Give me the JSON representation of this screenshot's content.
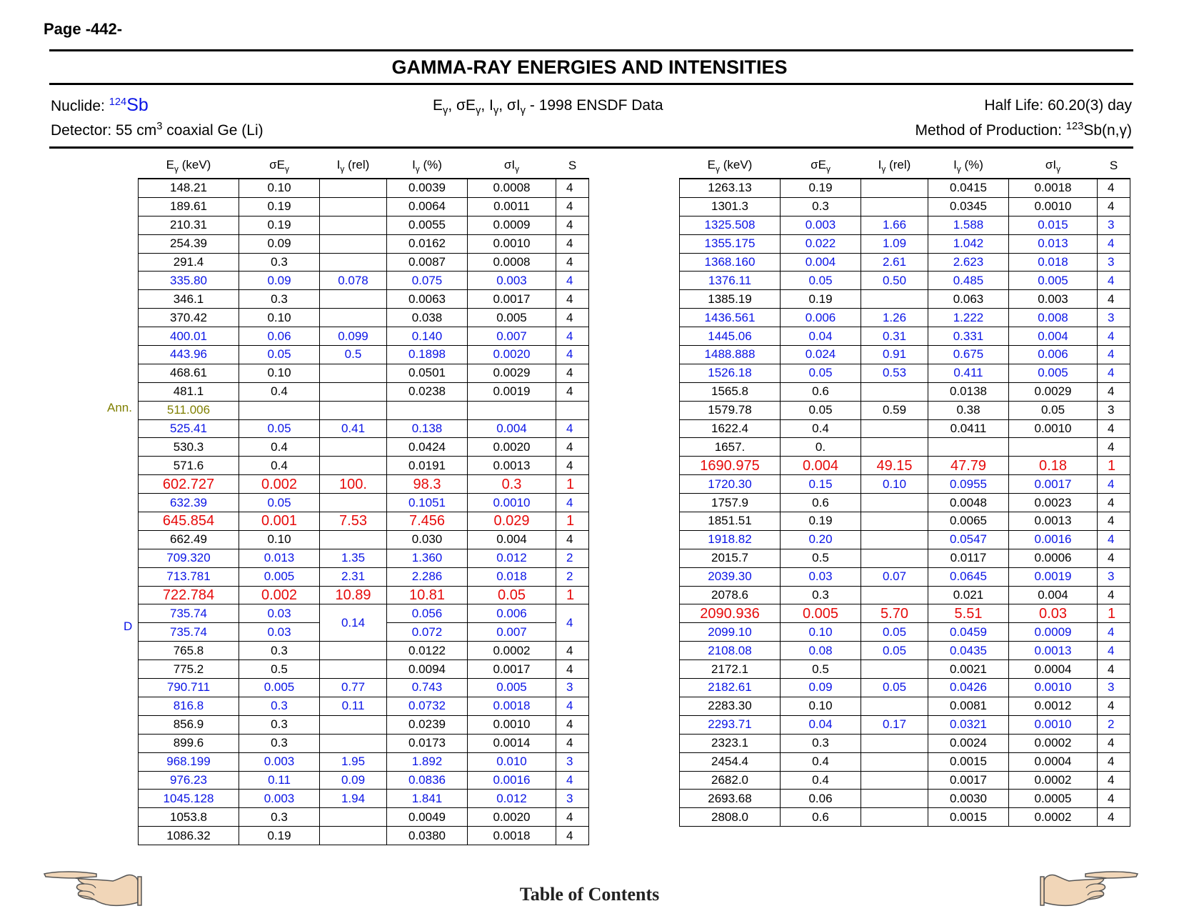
{
  "page_label": "Page -442-",
  "title": "GAMMA-RAY ENERGIES AND INTENSITIES",
  "header": {
    "nuclide_label": "Nuclide:",
    "nuclide_mass": "124",
    "nuclide_symbol": "Sb",
    "detector_label": "Detector: 55 cm",
    "detector_sup": "3",
    "detector_rest": " coaxial Ge (Li)",
    "data_source": "1998 ENSDF Data",
    "half_life": "Half Life: 60.20(3) day",
    "production_label": "Method of Production: ",
    "production_sup": "123",
    "production_rest": "Sb(n,γ)"
  },
  "columns": {
    "energy": "(keV)",
    "i_rel": "(rel)",
    "i_pct": "(%)",
    "s": "S"
  },
  "colors": {
    "blue": "#0a14e6",
    "red": "#e60a0a",
    "olive": "#7f7f00",
    "black": "#000000"
  },
  "annotations": {
    "ann": "Ann.",
    "d": "D"
  },
  "left_rows": [
    {
      "e": "148.21",
      "se": "0.10",
      "ir": "",
      "ip": "0.0039",
      "si": "0.0008",
      "s": "4",
      "c": "black"
    },
    {
      "e": "189.61",
      "se": "0.19",
      "ir": "",
      "ip": "0.0064",
      "si": "0.0011",
      "s": "4",
      "c": "black"
    },
    {
      "e": "210.31",
      "se": "0.19",
      "ir": "",
      "ip": "0.0055",
      "si": "0.0009",
      "s": "4",
      "c": "black"
    },
    {
      "e": "254.39",
      "se": "0.09",
      "ir": "",
      "ip": "0.0162",
      "si": "0.0010",
      "s": "4",
      "c": "black"
    },
    {
      "e": "291.4",
      "se": "0.3",
      "ir": "",
      "ip": "0.0087",
      "si": "0.0008",
      "s": "4",
      "c": "black"
    },
    {
      "e": "335.80",
      "se": "0.09",
      "ir": "0.078",
      "ip": "0.075",
      "si": "0.003",
      "s": "4",
      "c": "blue"
    },
    {
      "e": "346.1",
      "se": "0.3",
      "ir": "",
      "ip": "0.0063",
      "si": "0.0017",
      "s": "4",
      "c": "black"
    },
    {
      "e": "370.42",
      "se": "0.10",
      "ir": "",
      "ip": "0.038",
      "si": "0.005",
      "s": "4",
      "c": "black"
    },
    {
      "e": "400.01",
      "se": "0.06",
      "ir": "0.099",
      "ip": "0.140",
      "si": "0.007",
      "s": "4",
      "c": "blue"
    },
    {
      "e": "443.96",
      "se": "0.05",
      "ir": "0.5",
      "ip": "0.1898",
      "si": "0.0020",
      "s": "4",
      "c": "blue"
    },
    {
      "e": "468.61",
      "se": "0.10",
      "ir": "",
      "ip": "0.0501",
      "si": "0.0029",
      "s": "4",
      "c": "black"
    },
    {
      "e": "481.1",
      "se": "0.4",
      "ir": "",
      "ip": "0.0238",
      "si": "0.0019",
      "s": "4",
      "c": "black"
    },
    {
      "e": "511.006",
      "se": "",
      "ir": "",
      "ip": "",
      "si": "",
      "s": "",
      "c": "olive"
    },
    {
      "e": "525.41",
      "se": "0.05",
      "ir": "0.41",
      "ip": "0.138",
      "si": "0.004",
      "s": "4",
      "c": "blue"
    },
    {
      "e": "530.3",
      "se": "0.4",
      "ir": "",
      "ip": "0.0424",
      "si": "0.0020",
      "s": "4",
      "c": "black"
    },
    {
      "e": "571.6",
      "se": "0.4",
      "ir": "",
      "ip": "0.0191",
      "si": "0.0013",
      "s": "4",
      "c": "black"
    },
    {
      "e": "602.727",
      "se": "0.002",
      "ir": "100.",
      "ip": "98.3",
      "si": "0.3",
      "s": "1",
      "c": "red"
    },
    {
      "e": "632.39",
      "se": "0.05",
      "ir": "",
      "ip": "0.1051",
      "si": "0.0010",
      "s": "4",
      "c": "blue"
    },
    {
      "e": "645.854",
      "se": "0.001",
      "ir": "7.53",
      "ip": "7.456",
      "si": "0.029",
      "s": "1",
      "c": "red"
    },
    {
      "e": "662.49",
      "se": "0.10",
      "ir": "",
      "ip": "0.030",
      "si": "0.004",
      "s": "4",
      "c": "black"
    },
    {
      "e": "709.320",
      "se": "0.013",
      "ir": "1.35",
      "ip": "1.360",
      "si": "0.012",
      "s": "2",
      "c": "blue"
    },
    {
      "e": "713.781",
      "se": "0.005",
      "ir": "2.31",
      "ip": "2.286",
      "si": "0.018",
      "s": "2",
      "c": "blue"
    },
    {
      "e": "722.784",
      "se": "0.002",
      "ir": "10.89",
      "ip": "10.81",
      "si": "0.05",
      "s": "1",
      "c": "red"
    },
    {
      "e": "735.74",
      "se": "0.03",
      "ir": "0.14",
      "ip": "0.056",
      "si": "0.006",
      "s": "4",
      "c": "blue",
      "dbl": "top"
    },
    {
      "e": "735.74",
      "se": "0.03",
      "ir": "",
      "ip": "0.072",
      "si": "0.007",
      "s": "",
      "c": "blue",
      "dbl": "bottom"
    },
    {
      "e": "765.8",
      "se": "0.3",
      "ir": "",
      "ip": "0.0122",
      "si": "0.0002",
      "s": "4",
      "c": "black"
    },
    {
      "e": "775.2",
      "se": "0.5",
      "ir": "",
      "ip": "0.0094",
      "si": "0.0017",
      "s": "4",
      "c": "black"
    },
    {
      "e": "790.711",
      "se": "0.005",
      "ir": "0.77",
      "ip": "0.743",
      "si": "0.005",
      "s": "3",
      "c": "blue"
    },
    {
      "e": "816.8",
      "se": "0.3",
      "ir": "0.11",
      "ip": "0.0732",
      "si": "0.0018",
      "s": "4",
      "c": "blue"
    },
    {
      "e": "856.9",
      "se": "0.3",
      "ir": "",
      "ip": "0.0239",
      "si": "0.0010",
      "s": "4",
      "c": "black"
    },
    {
      "e": "899.6",
      "se": "0.3",
      "ir": "",
      "ip": "0.0173",
      "si": "0.0014",
      "s": "4",
      "c": "black"
    },
    {
      "e": "968.199",
      "se": "0.003",
      "ir": "1.95",
      "ip": "1.892",
      "si": "0.010",
      "s": "3",
      "c": "blue"
    },
    {
      "e": "976.23",
      "se": "0.11",
      "ir": "0.09",
      "ip": "0.0836",
      "si": "0.0016",
      "s": "4",
      "c": "blue"
    },
    {
      "e": "1045.128",
      "se": "0.003",
      "ir": "1.94",
      "ip": "1.841",
      "si": "0.012",
      "s": "3",
      "c": "blue"
    },
    {
      "e": "1053.8",
      "se": "0.3",
      "ir": "",
      "ip": "0.0049",
      "si": "0.0020",
      "s": "4",
      "c": "black"
    },
    {
      "e": "1086.32",
      "se": "0.19",
      "ir": "",
      "ip": "0.0380",
      "si": "0.0018",
      "s": "4",
      "c": "black"
    }
  ],
  "right_rows": [
    {
      "e": "1263.13",
      "se": "0.19",
      "ir": "",
      "ip": "0.0415",
      "si": "0.0018",
      "s": "4",
      "c": "black"
    },
    {
      "e": "1301.3",
      "se": "0.3",
      "ir": "",
      "ip": "0.0345",
      "si": "0.0010",
      "s": "4",
      "c": "black"
    },
    {
      "e": "1325.508",
      "se": "0.003",
      "ir": "1.66",
      "ip": "1.588",
      "si": "0.015",
      "s": "3",
      "c": "blue"
    },
    {
      "e": "1355.175",
      "se": "0.022",
      "ir": "1.09",
      "ip": "1.042",
      "si": "0.013",
      "s": "4",
      "c": "blue"
    },
    {
      "e": "1368.160",
      "se": "0.004",
      "ir": "2.61",
      "ip": "2.623",
      "si": "0.018",
      "s": "3",
      "c": "blue"
    },
    {
      "e": "1376.11",
      "se": "0.05",
      "ir": "0.50",
      "ip": "0.485",
      "si": "0.005",
      "s": "4",
      "c": "blue"
    },
    {
      "e": "1385.19",
      "se": "0.19",
      "ir": "",
      "ip": "0.063",
      "si": "0.003",
      "s": "4",
      "c": "black"
    },
    {
      "e": "1436.561",
      "se": "0.006",
      "ir": "1.26",
      "ip": "1.222",
      "si": "0.008",
      "s": "3",
      "c": "blue"
    },
    {
      "e": "1445.06",
      "se": "0.04",
      "ir": "0.31",
      "ip": "0.331",
      "si": "0.004",
      "s": "4",
      "c": "blue"
    },
    {
      "e": "1488.888",
      "se": "0.024",
      "ir": "0.91",
      "ip": "0.675",
      "si": "0.006",
      "s": "4",
      "c": "blue"
    },
    {
      "e": "1526.18",
      "se": "0.05",
      "ir": "0.53",
      "ip": "0.411",
      "si": "0.005",
      "s": "4",
      "c": "blue"
    },
    {
      "e": "1565.8",
      "se": "0.6",
      "ir": "",
      "ip": "0.0138",
      "si": "0.0029",
      "s": "4",
      "c": "black"
    },
    {
      "e": "1579.78",
      "se": "0.05",
      "ir": "0.59",
      "ip": "0.38",
      "si": "0.05",
      "s": "3",
      "c": "black"
    },
    {
      "e": "1622.4",
      "se": "0.4",
      "ir": "",
      "ip": "0.0411",
      "si": "0.0010",
      "s": "4",
      "c": "black"
    },
    {
      "e": "1657.",
      "se": "0.",
      "ir": "",
      "ip": "",
      "si": "",
      "s": "4",
      "c": "black"
    },
    {
      "e": "1690.975",
      "se": "0.004",
      "ir": "49.15",
      "ip": "47.79",
      "si": "0.18",
      "s": "1",
      "c": "red"
    },
    {
      "e": "1720.30",
      "se": "0.15",
      "ir": "0.10",
      "ip": "0.0955",
      "si": "0.0017",
      "s": "4",
      "c": "blue"
    },
    {
      "e": "1757.9",
      "se": "0.6",
      "ir": "",
      "ip": "0.0048",
      "si": "0.0023",
      "s": "4",
      "c": "black"
    },
    {
      "e": "1851.51",
      "se": "0.19",
      "ir": "",
      "ip": "0.0065",
      "si": "0.0013",
      "s": "4",
      "c": "black"
    },
    {
      "e": "1918.82",
      "se": "0.20",
      "ir": "",
      "ip": "0.0547",
      "si": "0.0016",
      "s": "4",
      "c": "blue"
    },
    {
      "e": "2015.7",
      "se": "0.5",
      "ir": "",
      "ip": "0.0117",
      "si": "0.0006",
      "s": "4",
      "c": "black"
    },
    {
      "e": "2039.30",
      "se": "0.03",
      "ir": "0.07",
      "ip": "0.0645",
      "si": "0.0019",
      "s": "3",
      "c": "blue"
    },
    {
      "e": "2078.6",
      "se": "0.3",
      "ir": "",
      "ip": "0.021",
      "si": "0.004",
      "s": "4",
      "c": "black"
    },
    {
      "e": "2090.936",
      "se": "0.005",
      "ir": "5.70",
      "ip": "5.51",
      "si": "0.03",
      "s": "1",
      "c": "red"
    },
    {
      "e": "2099.10",
      "se": "0.10",
      "ir": "0.05",
      "ip": "0.0459",
      "si": "0.0009",
      "s": "4",
      "c": "blue"
    },
    {
      "e": "2108.08",
      "se": "0.08",
      "ir": "0.05",
      "ip": "0.0435",
      "si": "0.0013",
      "s": "4",
      "c": "blue"
    },
    {
      "e": "2172.1",
      "se": "0.5",
      "ir": "",
      "ip": "0.0021",
      "si": "0.0004",
      "s": "4",
      "c": "black"
    },
    {
      "e": "2182.61",
      "se": "0.09",
      "ir": "0.05",
      "ip": "0.0426",
      "si": "0.0010",
      "s": "3",
      "c": "blue"
    },
    {
      "e": "2283.30",
      "se": "0.10",
      "ir": "",
      "ip": "0.0081",
      "si": "0.0012",
      "s": "4",
      "c": "black"
    },
    {
      "e": "2293.71",
      "se": "0.04",
      "ir": "0.17",
      "ip": "0.0321",
      "si": "0.0010",
      "s": "2",
      "c": "blue"
    },
    {
      "e": "2323.1",
      "se": "0.3",
      "ir": "",
      "ip": "0.0024",
      "si": "0.0002",
      "s": "4",
      "c": "black"
    },
    {
      "e": "2454.4",
      "se": "0.4",
      "ir": "",
      "ip": "0.0015",
      "si": "0.0004",
      "s": "4",
      "c": "black"
    },
    {
      "e": "2682.0",
      "se": "0.4",
      "ir": "",
      "ip": "0.0017",
      "si": "0.0002",
      "s": "4",
      "c": "black"
    },
    {
      "e": "2693.68",
      "se": "0.06",
      "ir": "",
      "ip": "0.0030",
      "si": "0.0005",
      "s": "4",
      "c": "black"
    },
    {
      "e": "2808.0",
      "se": "0.6",
      "ir": "",
      "ip": "0.0015",
      "si": "0.0002",
      "s": "4",
      "c": "black"
    }
  ],
  "footer": {
    "toc": "Table of Contents",
    "prev_icon": "pointing-hand-left-icon",
    "next_icon": "pointing-hand-right-icon"
  }
}
